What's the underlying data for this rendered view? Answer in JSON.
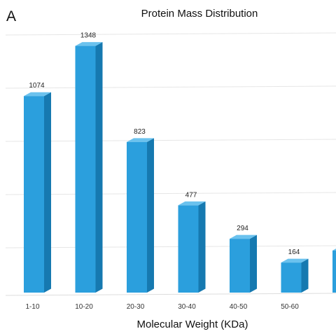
{
  "panel_label": "A",
  "colors": {
    "bar_front": "#2b9fdd",
    "bar_side": "#1679b0",
    "bar_top": "#6bc2ee",
    "gridline": "#e6e6e6"
  },
  "chart_data": {
    "type": "bar",
    "title": "Protein Mass Distribution",
    "xlabel": "Molecular Weight (KDa)",
    "ylabel": "",
    "categories": [
      "1-10",
      "10-20",
      "20-30",
      "30-40",
      "40-50",
      "50-60",
      ">"
    ],
    "values": [
      1074,
      1348,
      823,
      477,
      294,
      164,
      null
    ],
    "data_labels": [
      "1074",
      "1348",
      "823",
      "477",
      "294",
      "164",
      ""
    ],
    "ylim": [
      0,
      1400
    ],
    "grid": true,
    "style": "3d"
  }
}
